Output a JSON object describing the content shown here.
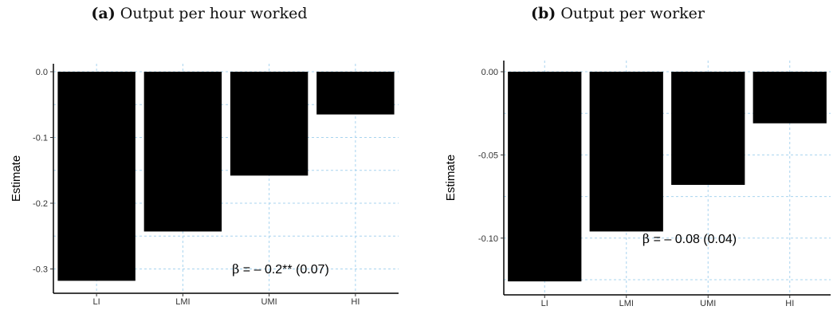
{
  "panels": [
    {
      "label": "(a)",
      "title": "Output per hour worked"
    },
    {
      "label": "(b)",
      "title": "Output per worker"
    }
  ],
  "chart_data": [
    {
      "type": "bar",
      "title": "(a) Output per hour worked",
      "xlabel": "",
      "ylabel": "Estimate",
      "categories": [
        "LI",
        "LMI",
        "UMI",
        "HI"
      ],
      "values": [
        -0.318,
        -0.243,
        -0.158,
        -0.065
      ],
      "ylim": [
        -0.33,
        0.0
      ],
      "yticks": [
        0.0,
        -0.1,
        -0.2,
        -0.3
      ],
      "ytick_labels": [
        "0.0",
        "-0.1",
        "-0.2",
        "-0.3"
      ],
      "grid": true,
      "bar_color": "#000000",
      "grid_color": "#a8d4ef",
      "annotation": {
        "symbol": "β",
        "text": " = – 0.2** (0.07)"
      }
    },
    {
      "type": "bar",
      "title": "(b) Output per worker",
      "xlabel": "",
      "ylabel": "Estimate",
      "categories": [
        "LI",
        "LMI",
        "UMI",
        "HI"
      ],
      "values": [
        -0.126,
        -0.096,
        -0.068,
        -0.031
      ],
      "ylim": [
        -0.13,
        0.0
      ],
      "yticks": [
        0.0,
        -0.05,
        -0.1
      ],
      "ytick_labels": [
        "0.00",
        "-0.05",
        "-0.10"
      ],
      "grid": true,
      "bar_color": "#000000",
      "grid_color": "#a8d4ef",
      "annotation": {
        "symbol": "β",
        "text": " = – 0.08 (0.04)"
      }
    }
  ]
}
